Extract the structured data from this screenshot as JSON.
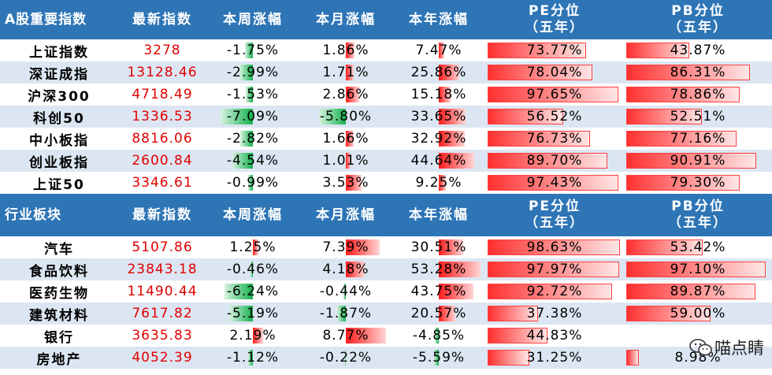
{
  "section_a": {
    "headers": {
      "name": "A股重要指数",
      "latest": "最新指数",
      "week": "本周涨幅",
      "month": "本月涨幅",
      "year": "本年涨幅",
      "pe_line1": "PE分位",
      "pe_line2": "（五年）",
      "pb_line1": "PB分位",
      "pb_line2": "（五年）"
    },
    "rows": [
      {
        "name": "上证指数",
        "latest": "3278",
        "week": "-1.75%",
        "week_val": -1.75,
        "month": "1.86%",
        "month_val": 1.86,
        "year": "7.47%",
        "year_val": 7.47,
        "pe": "73.77%",
        "pe_val": 73.77,
        "pb": "43.87%",
        "pb_val": 43.87
      },
      {
        "name": "深证成指",
        "latest": "13128.46",
        "week": "-2.99%",
        "week_val": -2.99,
        "month": "1.71%",
        "month_val": 1.71,
        "year": "25.86%",
        "year_val": 25.86,
        "pe": "78.04%",
        "pe_val": 78.04,
        "pb": "86.31%",
        "pb_val": 86.31
      },
      {
        "name": "沪深300",
        "latest": "4718.49",
        "week": "-1.53%",
        "week_val": -1.53,
        "month": "2.86%",
        "month_val": 2.86,
        "year": "15.18%",
        "year_val": 15.18,
        "pe": "97.65%",
        "pe_val": 97.65,
        "pb": "78.86%",
        "pb_val": 78.86
      },
      {
        "name": "科创50",
        "latest": "1336.53",
        "week": "-7.09%",
        "week_val": -7.09,
        "month": "-5.80%",
        "month_val": -5.8,
        "year": "33.65%",
        "year_val": 33.65,
        "pe": "56.52%",
        "pe_val": 56.52,
        "pb": "52.51%",
        "pb_val": 52.51
      },
      {
        "name": "中小板指",
        "latest": "8816.06",
        "week": "-2.82%",
        "week_val": -2.82,
        "month": "1.66%",
        "month_val": 1.66,
        "year": "32.92%",
        "year_val": 32.92,
        "pe": "76.73%",
        "pe_val": 76.73,
        "pb": "77.16%",
        "pb_val": 77.16
      },
      {
        "name": "创业板指",
        "latest": "2600.84",
        "week": "-4.54%",
        "week_val": -4.54,
        "month": "1.01%",
        "month_val": 1.01,
        "year": "44.64%",
        "year_val": 44.64,
        "pe": "89.70%",
        "pe_val": 89.7,
        "pb": "90.91%",
        "pb_val": 90.91
      },
      {
        "name": "上证50",
        "latest": "3346.61",
        "week": "-0.99%",
        "week_val": -0.99,
        "month": "3.53%",
        "month_val": 3.53,
        "year": "9.25%",
        "year_val": 9.25,
        "pe": "97.43%",
        "pe_val": 97.43,
        "pb": "79.30%",
        "pb_val": 79.3
      }
    ]
  },
  "section_b": {
    "headers": {
      "name": "行业板块",
      "latest": "最新指数",
      "week": "本周涨幅",
      "month": "本月涨幅",
      "year": "本年涨幅",
      "pe_line1": "PE分位",
      "pe_line2": "（五年）",
      "pb_line1": "PB分位",
      "pb_line2": "（五年）"
    },
    "rows": [
      {
        "name": "汽车",
        "latest": "5107.86",
        "week": "1.25%",
        "week_val": 1.25,
        "month": "7.39%",
        "month_val": 7.39,
        "year": "30.51%",
        "year_val": 30.51,
        "pe": "98.63%",
        "pe_val": 98.63,
        "pb": "53.42%",
        "pb_val": 53.42
      },
      {
        "name": "食品饮料",
        "latest": "23843.18",
        "week": "-0.46%",
        "week_val": -0.46,
        "month": "4.18%",
        "month_val": 4.18,
        "year": "53.28%",
        "year_val": 53.28,
        "pe": "97.97%",
        "pe_val": 97.97,
        "pb": "97.10%",
        "pb_val": 97.1
      },
      {
        "name": "医药生物",
        "latest": "11490.44",
        "week": "-6.24%",
        "week_val": -6.24,
        "month": "-0.44%",
        "month_val": -0.44,
        "year": "43.75%",
        "year_val": 43.75,
        "pe": "92.72%",
        "pe_val": 92.72,
        "pb": "89.87%",
        "pb_val": 89.87
      },
      {
        "name": "建筑材料",
        "latest": "7617.82",
        "week": "-5.19%",
        "week_val": -5.19,
        "month": "-1.87%",
        "month_val": -1.87,
        "year": "20.57%",
        "year_val": 20.57,
        "pe": "37.38%",
        "pe_val": 37.38,
        "pb": "59.00%",
        "pb_val": 59.0
      },
      {
        "name": "银行",
        "latest": "3635.83",
        "week": "2.19%",
        "week_val": 2.19,
        "month": "8.77%",
        "month_val": 8.77,
        "year": "-4.85%",
        "year_val": -4.85,
        "pe": "44.83%",
        "pe_val": 44.83,
        "pb": "",
        "pb_val": 0
      },
      {
        "name": "房地产",
        "latest": "4052.39",
        "week": "-1.12%",
        "week_val": -1.12,
        "month": "-0.22%",
        "month_val": -0.22,
        "year": "-5.59%",
        "year_val": -5.59,
        "pe": "31.25%",
        "pe_val": 31.25,
        "pb": "8.98%",
        "pb_val": 8.98
      }
    ]
  },
  "watermark": {
    "text": "喵点睛",
    "icon": "wechat-icon"
  },
  "colors": {
    "header_bg": "#2e75b6",
    "alt_row_bg": "#dce6f2",
    "index_red": "#e00000",
    "bar_red": "#ff1a1a",
    "bar_green": "#12b04c"
  }
}
